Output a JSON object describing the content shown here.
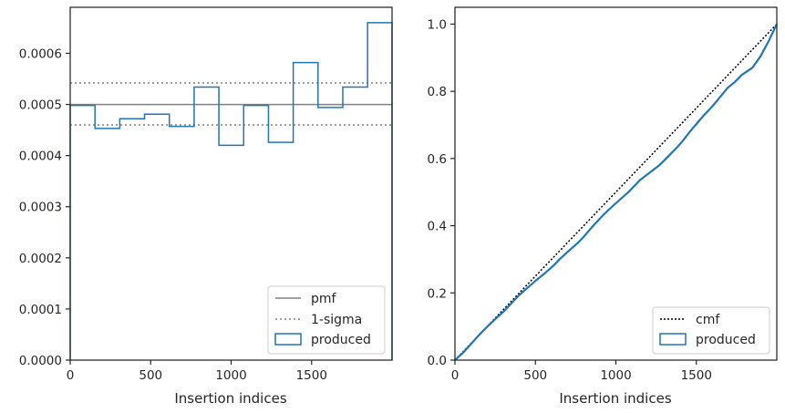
{
  "chart_data": [
    {
      "type": "line",
      "xlabel": "Insertion indices",
      "ylabel": "",
      "xlim": [
        0,
        2000
      ],
      "ylim": [
        0,
        0.00069
      ],
      "xticks": [
        0,
        500,
        1000,
        1500
      ],
      "xtick_labels": [
        "0",
        "500",
        "1000",
        "1500"
      ],
      "yticks": [
        0,
        0.0001,
        0.0002,
        0.0003,
        0.0004,
        0.0005,
        0.0006
      ],
      "ytick_labels": [
        "0.0000",
        "0.0001",
        "0.0002",
        "0.0003",
        "0.0004",
        "0.0005",
        "0.0006"
      ],
      "grid": false,
      "legend_position": "bottom-right",
      "pmf": {
        "label": "pmf",
        "value": 0.0005,
        "color": "#808080"
      },
      "sigma": {
        "label": "1-sigma",
        "values": [
          0.000542,
          0.00046
        ],
        "color": "#808080"
      },
      "produced": {
        "label": "produced",
        "color": "#1f77b4",
        "bin_edges": [
          0,
          154,
          308,
          462,
          616,
          770,
          924,
          1078,
          1232,
          1386,
          1540,
          1694,
          1848,
          2000
        ],
        "values": [
          0.000498,
          0.000453,
          0.000472,
          0.000481,
          0.000457,
          0.000534,
          0.00042,
          0.000498,
          0.000426,
          0.000582,
          0.000494,
          0.000534,
          0.00066
        ]
      }
    },
    {
      "type": "line",
      "xlabel": "Insertion indices",
      "ylabel": "",
      "xlim": [
        0,
        2000
      ],
      "ylim": [
        0,
        1.05
      ],
      "xticks": [
        0,
        500,
        1000,
        1500
      ],
      "xtick_labels": [
        "0",
        "500",
        "1000",
        "1500"
      ],
      "yticks": [
        0,
        0.2,
        0.4,
        0.6,
        0.8,
        1.0
      ],
      "ytick_labels": [
        "0.0",
        "0.2",
        "0.4",
        "0.6",
        "0.8",
        "1.0"
      ],
      "grid": false,
      "legend_position": "bottom-right",
      "cmf": {
        "label": "cmf",
        "x": [
          0,
          2000
        ],
        "y": [
          0,
          1
        ],
        "color": "#000000"
      },
      "produced": {
        "label": "produced",
        "color": "#1f77b4",
        "x": [
          0,
          50,
          100,
          154,
          200,
          250,
          308,
          350,
          400,
          462,
          500,
          550,
          616,
          650,
          700,
          770,
          800,
          850,
          924,
          950,
          1000,
          1078,
          1100,
          1150,
          1232,
          1270,
          1300,
          1386,
          1420,
          1460,
          1540,
          1580,
          1620,
          1694,
          1740,
          1780,
          1848,
          1900,
          1950,
          2000
        ],
        "y": [
          0,
          0.022,
          0.048,
          0.077,
          0.099,
          0.122,
          0.147,
          0.169,
          0.194,
          0.22,
          0.236,
          0.255,
          0.283,
          0.3,
          0.322,
          0.352,
          0.367,
          0.395,
          0.433,
          0.445,
          0.467,
          0.5,
          0.511,
          0.536,
          0.566,
          0.58,
          0.594,
          0.636,
          0.655,
          0.68,
          0.725,
          0.745,
          0.767,
          0.81,
          0.828,
          0.848,
          0.87,
          0.905,
          0.95,
          1.0
        ]
      }
    }
  ]
}
